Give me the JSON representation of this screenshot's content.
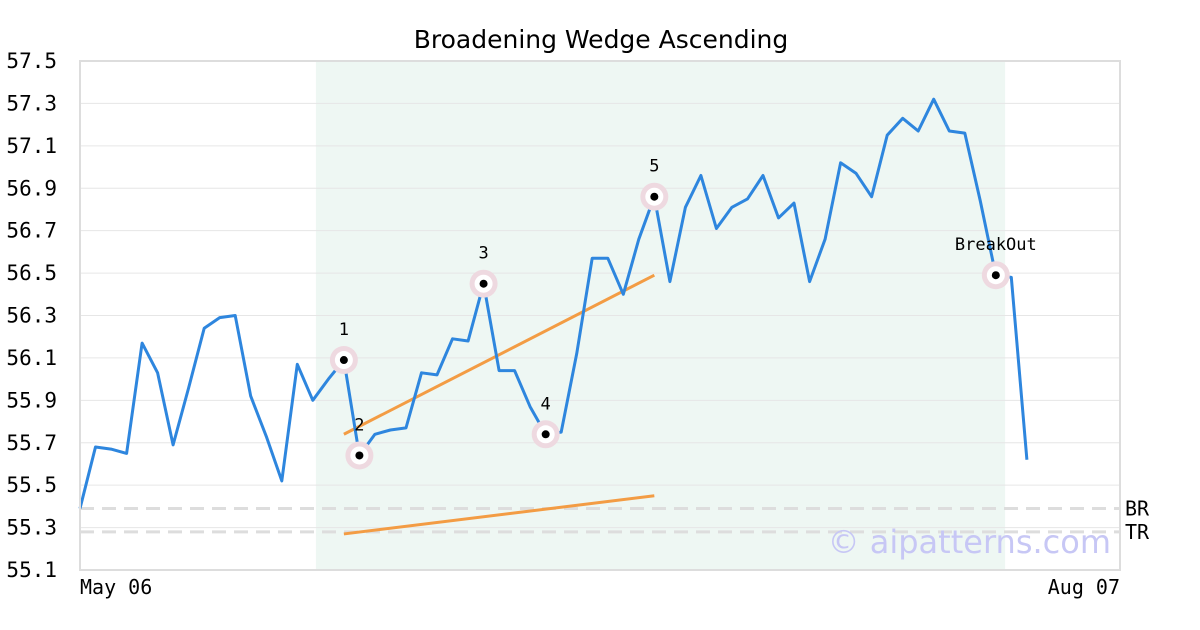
{
  "chart_data": {
    "type": "line",
    "title": "Broadening Wedge Ascending",
    "watermark": "© aipatterns.com",
    "ylim": [
      55.1,
      57.5
    ],
    "y_ticks": [
      "55.1",
      "55.3",
      "55.5",
      "55.7",
      "55.9",
      "56.1",
      "56.3",
      "56.5",
      "56.7",
      "56.9",
      "57.1",
      "57.3",
      "57.5"
    ],
    "x_range": [
      0,
      67
    ],
    "x_tick_labels": [
      {
        "x": 0,
        "label": "May 06"
      },
      {
        "x": 67,
        "label": "Aug 07"
      }
    ],
    "grid": true,
    "colors": {
      "price": "#2e86de",
      "trendline": "#f39c44",
      "highlight": "#eef7f3",
      "marker_halo": "#eed9e0",
      "reference": "#dddddd"
    },
    "series": [
      {
        "values": [
          {
            "x": 0,
            "y": 55.39
          },
          {
            "x": 1,
            "y": 55.68
          },
          {
            "x": 2,
            "y": 55.67
          },
          {
            "x": 3,
            "y": 55.65
          },
          {
            "x": 4,
            "y": 56.17
          },
          {
            "x": 5,
            "y": 56.03
          },
          {
            "x": 6,
            "y": 55.69
          },
          {
            "x": 7,
            "y": 55.96
          },
          {
            "x": 8,
            "y": 56.24
          },
          {
            "x": 9,
            "y": 56.29
          },
          {
            "x": 10,
            "y": 56.3
          },
          {
            "x": 11,
            "y": 55.92
          },
          {
            "x": 12,
            "y": 55.73
          },
          {
            "x": 13,
            "y": 55.52
          },
          {
            "x": 14,
            "y": 56.07
          },
          {
            "x": 15,
            "y": 55.9
          },
          {
            "x": 16,
            "y": 56.0
          },
          {
            "x": 17,
            "y": 56.09
          },
          {
            "x": 18,
            "y": 55.64
          },
          {
            "x": 19,
            "y": 55.74
          },
          {
            "x": 20,
            "y": 55.76
          },
          {
            "x": 21,
            "y": 55.77
          },
          {
            "x": 22,
            "y": 56.03
          },
          {
            "x": 23,
            "y": 56.02
          },
          {
            "x": 24,
            "y": 56.19
          },
          {
            "x": 25,
            "y": 56.18
          },
          {
            "x": 26,
            "y": 56.45
          },
          {
            "x": 27,
            "y": 56.04
          },
          {
            "x": 28,
            "y": 56.04
          },
          {
            "x": 29,
            "y": 55.87
          },
          {
            "x": 30,
            "y": 55.74
          },
          {
            "x": 31,
            "y": 55.75
          },
          {
            "x": 32,
            "y": 56.12
          },
          {
            "x": 33,
            "y": 56.57
          },
          {
            "x": 34,
            "y": 56.57
          },
          {
            "x": 35,
            "y": 56.4
          },
          {
            "x": 36,
            "y": 56.66
          },
          {
            "x": 37,
            "y": 56.86
          },
          {
            "x": 38,
            "y": 56.46
          },
          {
            "x": 39,
            "y": 56.81
          },
          {
            "x": 40,
            "y": 56.96
          },
          {
            "x": 41,
            "y": 56.71
          },
          {
            "x": 42,
            "y": 56.81
          },
          {
            "x": 43,
            "y": 56.85
          },
          {
            "x": 44,
            "y": 56.96
          },
          {
            "x": 45,
            "y": 56.76
          },
          {
            "x": 46,
            "y": 56.83
          },
          {
            "x": 47,
            "y": 56.46
          },
          {
            "x": 48,
            "y": 56.66
          },
          {
            "x": 49,
            "y": 57.02
          },
          {
            "x": 50,
            "y": 56.97
          },
          {
            "x": 51,
            "y": 56.86
          },
          {
            "x": 52,
            "y": 57.15
          },
          {
            "x": 53,
            "y": 57.23
          },
          {
            "x": 54,
            "y": 57.17
          },
          {
            "x": 55,
            "y": 57.32
          },
          {
            "x": 56,
            "y": 57.17
          },
          {
            "x": 57,
            "y": 57.16
          },
          {
            "x": 58,
            "y": 56.84
          },
          {
            "x": 59,
            "y": 56.49
          },
          {
            "x": 60,
            "y": 56.48
          },
          {
            "x": 61,
            "y": 55.62
          }
        ]
      }
    ],
    "highlight_range": [
      15.2,
      59.6
    ],
    "pivot_points": [
      {
        "label": "1",
        "x": 17,
        "y": 56.09,
        "label_pos": "above"
      },
      {
        "label": "2",
        "x": 18,
        "y": 55.64,
        "label_pos": "above"
      },
      {
        "label": "3",
        "x": 26,
        "y": 56.45,
        "label_pos": "above"
      },
      {
        "label": "4",
        "x": 30,
        "y": 55.74,
        "label_pos": "above"
      },
      {
        "label": "5",
        "x": 37,
        "y": 56.86,
        "label_pos": "above"
      },
      {
        "label": "BreakOut",
        "x": 59,
        "y": 56.49,
        "label_pos": "above"
      }
    ],
    "trendlines": [
      {
        "x1": 17,
        "y1": 55.74,
        "x2": 37,
        "y2": 56.49
      },
      {
        "x1": 17,
        "y1": 55.27,
        "x2": 37,
        "y2": 55.45
      }
    ],
    "reference_lines": [
      {
        "label": "BR",
        "y": 55.39
      },
      {
        "label": "TR",
        "y": 55.28
      }
    ]
  }
}
